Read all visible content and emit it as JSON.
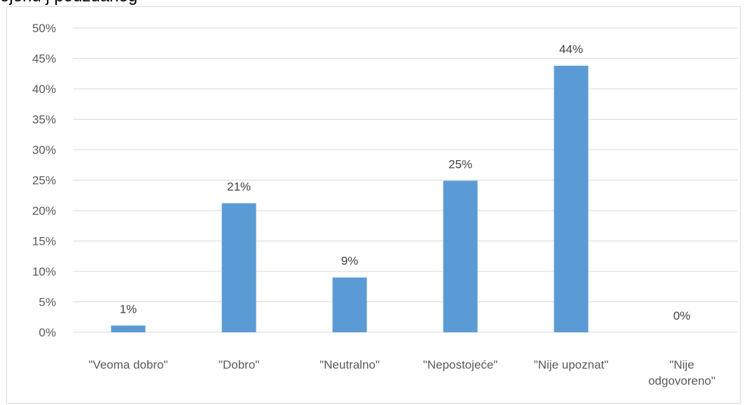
{
  "top_text": "ojenu j  pouzdanog",
  "chart_data": {
    "type": "bar",
    "categories": [
      [
        "\"Veoma dobro\""
      ],
      [
        "\"Dobro\""
      ],
      [
        "\"Neutralno\""
      ],
      [
        "\"Nepostojeće\""
      ],
      [
        "\"Nije upoznat\""
      ],
      [
        "\"Nije",
        "odgovoreno\""
      ]
    ],
    "values": [
      1.1,
      21.2,
      9.0,
      24.9,
      43.8,
      0
    ],
    "data_labels": [
      "1%",
      "21%",
      "9%",
      "25%",
      "44%",
      "0%"
    ],
    "yticks": [
      "0%",
      "5%",
      "10%",
      "15%",
      "20%",
      "25%",
      "30%",
      "35%",
      "40%",
      "45%",
      "50%"
    ],
    "ylim": [
      0,
      50
    ],
    "grid": true,
    "bar_color": "#5b9bd5",
    "grid_color": "#d9d9d9"
  }
}
